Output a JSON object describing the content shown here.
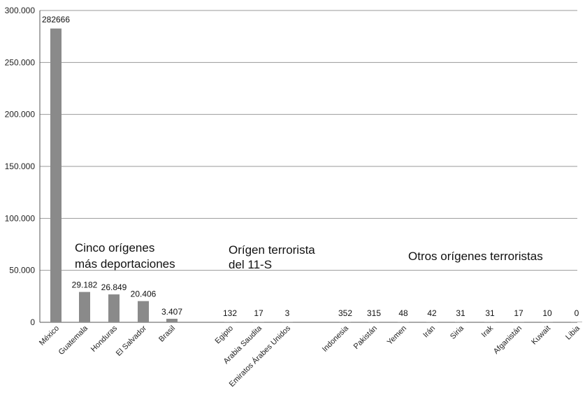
{
  "chart_data": {
    "type": "bar",
    "ylim": [
      0,
      300000
    ],
    "y_ticks": [
      "0",
      "50.000",
      "100.000",
      "150.000",
      "200.000",
      "250.000",
      "300.000"
    ],
    "grid": true,
    "bar_color": "#8a8a8a",
    "categories": [
      "México",
      "Guatemala",
      "Honduras",
      "El Salvador",
      "Brasil",
      "Egipto",
      "Arabia Saudita",
      "Emiratos Árabes Unidos",
      "Indonesia",
      "Pakistán",
      "Yemen",
      "Irán",
      "Siria",
      "Irak",
      "Afganistán",
      "Kuwait",
      "Libia"
    ],
    "values": [
      282666,
      29182,
      26849,
      20406,
      3407,
      132,
      17,
      3,
      352,
      315,
      48,
      42,
      31,
      31,
      17,
      10,
      0
    ],
    "data_labels": [
      "282666",
      "29.182",
      "26.849",
      "20.406",
      "3.407",
      "132",
      "17",
      "3",
      "352",
      "315",
      "48",
      "42",
      "31",
      "31",
      "17",
      "10",
      "0"
    ],
    "annotations": [
      {
        "lines": [
          "Cinco orígenes",
          "más deportaciones"
        ]
      },
      {
        "lines": [
          "Orígen terrorista",
          "del 11-S"
        ]
      },
      {
        "lines": [
          "Otros orígenes terroristas"
        ]
      }
    ]
  }
}
